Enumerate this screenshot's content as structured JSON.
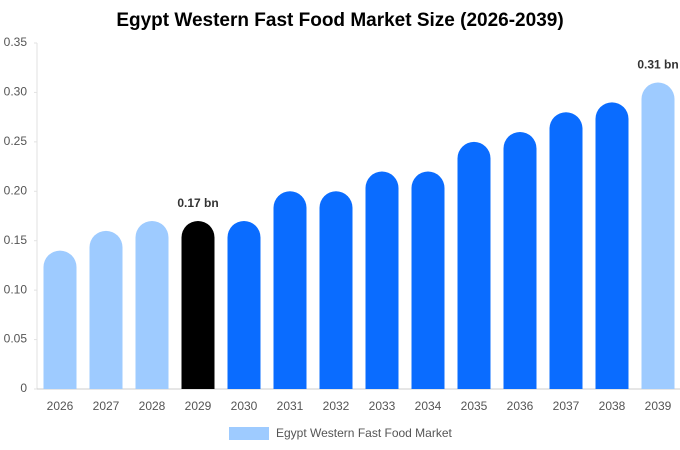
{
  "chart_data": {
    "type": "bar",
    "title": "Egypt Western Fast Food Market Size (2026-2039)",
    "categories": [
      "2026",
      "2027",
      "2028",
      "2029",
      "2030",
      "2031",
      "2032",
      "2033",
      "2034",
      "2035",
      "2036",
      "2037",
      "2038",
      "2039"
    ],
    "series": [
      {
        "name": "Egypt Western Fast Food Market",
        "color": "#9ecbff",
        "values": [
          0.14,
          0.16,
          0.17,
          0.17,
          0.17,
          0.2,
          0.2,
          0.22,
          0.22,
          0.25,
          0.26,
          0.28,
          0.29,
          0.31
        ],
        "value_labels": [
          null,
          null,
          null,
          "0.17 bn",
          null,
          null,
          null,
          null,
          null,
          null,
          null,
          null,
          null,
          "0.31 bn"
        ],
        "colors": [
          "#9ecbff",
          "#9ecbff",
          "#9ecbff",
          "#000000",
          "#0a6cff",
          "#0a6cff",
          "#0a6cff",
          "#0a6cff",
          "#0a6cff",
          "#0a6cff",
          "#0a6cff",
          "#0a6cff",
          "#0a6cff",
          "#9ecbff"
        ]
      }
    ],
    "ylim": [
      0,
      0.35
    ],
    "yticks": [
      0,
      0.05,
      {
        "value": 0.1,
        "label": "0.10"
      },
      0.15,
      {
        "value": 0.2,
        "label": "0.20"
      },
      0.25,
      {
        "value": 0.3,
        "label": "0.30"
      },
      0.35
    ],
    "grid": false,
    "legend": "bottom"
  }
}
